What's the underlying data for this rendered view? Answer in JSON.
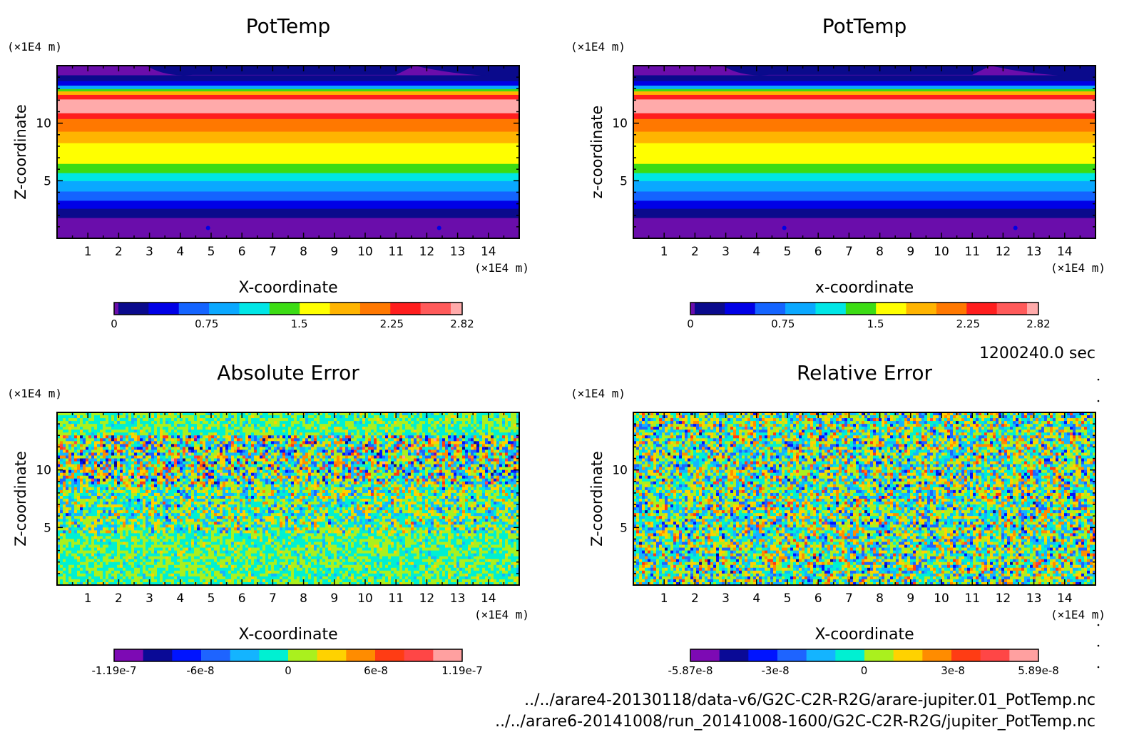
{
  "colors": {
    "potemp_levels": [
      "#6a0dab",
      "#0a0a8c",
      "#0000e6",
      "#1464ff",
      "#0aa8ff",
      "#00e6e6",
      "#3cdc14",
      "#ffff00",
      "#ffb400",
      "#ff7800",
      "#ff1e1e",
      "#ff5a5a",
      "#ffaaaa"
    ],
    "error_levels": [
      "#7d0ab4",
      "#0a0a96",
      "#0014ff",
      "#1e64ff",
      "#14b4ff",
      "#00f0d2",
      "#aaf01e",
      "#ffd200",
      "#ff8c00",
      "#ff3c14",
      "#ff4646",
      "#ffa0a0"
    ]
  },
  "time_label": "1200240.0 sec",
  "files": [
    "../../arare4-20130118/data-v6/G2C-C2R-R2G/arare-jupiter.01_PotTemp.nc",
    "../../arare6-20141008/run_20141008-1600/G2C-C2R-R2G/jupiter_PotTemp.nc"
  ],
  "chart_data": [
    {
      "type": "heatmap",
      "title": "PotTemp",
      "xlabel": "X-coordinate",
      "ylabel": "Z-coordinate",
      "x_unit": "(×1E4 m)",
      "y_unit": "(×1E4 m)",
      "xlim": [
        0,
        15
      ],
      "ylim": [
        0,
        15
      ],
      "xticks": [
        1,
        2,
        3,
        4,
        5,
        6,
        7,
        8,
        9,
        10,
        11,
        12,
        13,
        14
      ],
      "yticks": [
        5,
        10
      ],
      "colorbar": {
        "ticks": [
          "0",
          "0.75",
          "1.5",
          "2.25",
          "2.82"
        ],
        "range": [
          0,
          2.82
        ],
        "levels": 13
      },
      "pattern": "horizontal_layers"
    },
    {
      "type": "heatmap",
      "title": "PotTemp",
      "xlabel": "x-coordinate",
      "ylabel": "z-coordinate",
      "x_unit": "(×1E4 m)",
      "y_unit": "(×1E4 m)",
      "xlim": [
        0,
        15
      ],
      "ylim": [
        0,
        15
      ],
      "xticks": [
        1,
        2,
        3,
        4,
        5,
        6,
        7,
        8,
        9,
        10,
        11,
        12,
        13,
        14
      ],
      "yticks": [
        5,
        10
      ],
      "colorbar": {
        "ticks": [
          "0",
          "0.75",
          "1.5",
          "2.25",
          "2.82"
        ],
        "range": [
          0,
          2.82
        ],
        "levels": 13
      },
      "pattern": "horizontal_layers"
    },
    {
      "type": "heatmap",
      "title": "Absolute Error",
      "xlabel": "X-coordinate",
      "ylabel": "Z-coordinate",
      "x_unit": "(×1E4 m)",
      "y_unit": "(×1E4 m)",
      "xlim": [
        0,
        15
      ],
      "ylim": [
        0,
        15
      ],
      "xticks": [
        1,
        2,
        3,
        4,
        5,
        6,
        7,
        8,
        9,
        10,
        11,
        12,
        13,
        14
      ],
      "yticks": [
        5,
        10
      ],
      "colorbar": {
        "ticks": [
          "-1.19e-7",
          "-6e-8",
          "0",
          "6e-8",
          "1.19e-7"
        ],
        "range": [
          -1.19e-07,
          1.19e-07
        ],
        "levels": 12
      },
      "pattern": "noise_banded"
    },
    {
      "type": "heatmap",
      "title": "Relative Error",
      "xlabel": "X-coordinate",
      "ylabel": "Z-coordinate",
      "x_unit": "(×1E4 m)",
      "y_unit": "(×1E4 m)",
      "xlim": [
        0,
        15
      ],
      "ylim": [
        0,
        15
      ],
      "xticks": [
        1,
        2,
        3,
        4,
        5,
        6,
        7,
        8,
        9,
        10,
        11,
        12,
        13,
        14
      ],
      "yticks": [
        5,
        10
      ],
      "colorbar": {
        "ticks": [
          "-5.87e-8",
          "-3e-8",
          "0",
          "3e-8",
          "5.89e-8"
        ],
        "range": [
          -5.87e-08,
          5.89e-08
        ],
        "levels": 12
      },
      "pattern": "noise_uniform"
    }
  ]
}
